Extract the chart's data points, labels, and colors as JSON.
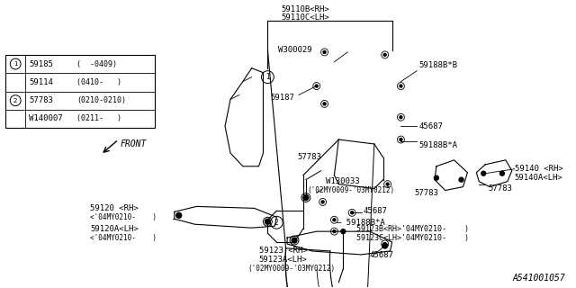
{
  "part_number": "A541001057",
  "background_color": "#ffffff",
  "text_color": "#000000",
  "line_color": "#000000",
  "legend": [
    {
      "sym": 1,
      "part": "59185",
      "note": "(  -0409)"
    },
    {
      "sym": 0,
      "part": "59114",
      "note": "(0410-   )"
    },
    {
      "sym": 2,
      "part": "57783",
      "note": "(0210-0210)"
    },
    {
      "sym": 0,
      "part": "W140007",
      "note": "(0211-   )"
    }
  ]
}
